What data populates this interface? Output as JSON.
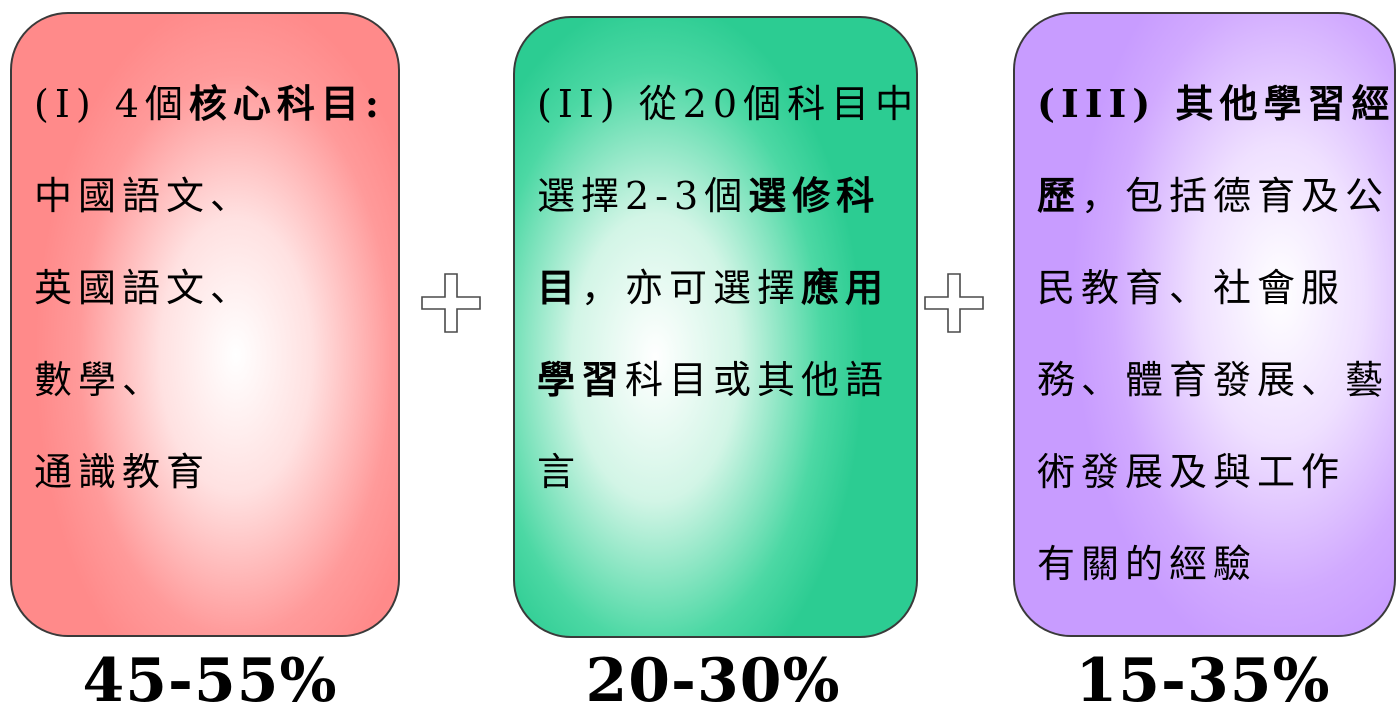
{
  "boxes": [
    {
      "color": "#ff8a8a",
      "lines": [
        [
          {
            "t": "(I) 4個",
            "b": false
          },
          {
            "t": "核心科目:",
            "b": true
          }
        ],
        [
          {
            "t": "中國語文、",
            "b": false
          }
        ],
        [
          {
            "t": "英國語文、",
            "b": false
          }
        ],
        [
          {
            "t": "數學、",
            "b": false
          }
        ],
        [
          {
            "t": "通識教育",
            "b": false
          }
        ]
      ],
      "percent": "45-55%"
    },
    {
      "color": "#2ccc92",
      "lines": [
        [
          {
            "t": "(II) 從20個科目中",
            "b": false
          }
        ],
        [
          {
            "t": "選擇2-3個",
            "b": false
          },
          {
            "t": "選修科",
            "b": true
          }
        ],
        [
          {
            "t": "目",
            "b": true
          },
          {
            "t": "，亦可選擇",
            "b": false
          },
          {
            "t": "應用",
            "b": true
          }
        ],
        [
          {
            "t": "學習",
            "b": true
          },
          {
            "t": "科目或其他語",
            "b": false
          }
        ],
        [
          {
            "t": "言",
            "b": false
          }
        ]
      ],
      "percent": "20-30%"
    },
    {
      "color": "#c89cff",
      "lines": [
        [
          {
            "t": "(III) 其他學習經",
            "b": true
          }
        ],
        [
          {
            "t": "歷",
            "b": true
          },
          {
            "t": "，包括德育及公",
            "b": false
          }
        ],
        [
          {
            "t": "民教育、社會服",
            "b": false
          }
        ],
        [
          {
            "t": "務、體育發展、藝",
            "b": false
          }
        ],
        [
          {
            "t": "術發展及與工作",
            "b": false
          }
        ],
        [
          {
            "t": "有關的經驗",
            "b": false
          }
        ]
      ],
      "percent": "15-35%"
    }
  ],
  "plus_icon": "plus-outline-icon"
}
